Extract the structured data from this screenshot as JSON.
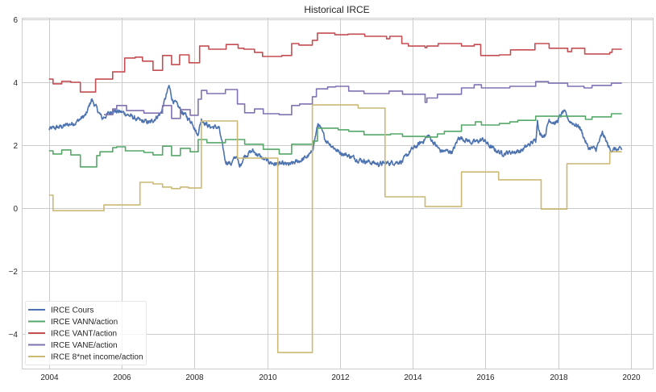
{
  "chart_data": {
    "type": "line",
    "title": "Historical IRCE",
    "xlabel": "",
    "ylabel": "",
    "xlim": [
      2003.25,
      2020.6
    ],
    "ylim": [
      -5.1,
      6.05
    ],
    "grid": true,
    "legend_position": "bottom-left",
    "x_ticks": [
      "2004",
      "2006",
      "2008",
      "2010",
      "2012",
      "2014",
      "2016",
      "2018",
      "2020"
    ],
    "y_ticks": [
      "6",
      "4",
      "2",
      "0",
      "−2",
      "−4"
    ],
    "x_tick_values": [
      2004,
      2006,
      2008,
      2010,
      2012,
      2014,
      2016,
      2018,
      2020
    ],
    "y_tick_values": [
      6,
      4,
      2,
      0,
      -2,
      -4
    ],
    "series": [
      {
        "name": "IRCE Cours",
        "color": "#4c72b0",
        "style": "noisy",
        "points": [
          [
            2004.0,
            2.51
          ],
          [
            2004.35,
            2.59
          ],
          [
            2004.73,
            2.72
          ],
          [
            2005.02,
            2.97
          ],
          [
            2005.17,
            3.46
          ],
          [
            2005.46,
            2.85
          ],
          [
            2005.75,
            3.1
          ],
          [
            2006.06,
            3.03
          ],
          [
            2006.5,
            2.77
          ],
          [
            2006.79,
            2.72
          ],
          [
            2007.08,
            3.03
          ],
          [
            2007.3,
            3.87
          ],
          [
            2007.39,
            3.46
          ],
          [
            2007.68,
            3.03
          ],
          [
            2007.96,
            2.69
          ],
          [
            2008.08,
            2.31
          ],
          [
            2008.19,
            2.82
          ],
          [
            2008.41,
            2.59
          ],
          [
            2008.67,
            2.56
          ],
          [
            2008.85,
            1.49
          ],
          [
            2009.01,
            1.41
          ],
          [
            2009.16,
            1.67
          ],
          [
            2009.23,
            1.31
          ],
          [
            2009.38,
            1.67
          ],
          [
            2009.6,
            1.82
          ],
          [
            2009.89,
            1.56
          ],
          [
            2010.18,
            1.41
          ],
          [
            2010.62,
            1.38
          ],
          [
            2011.0,
            1.56
          ],
          [
            2011.22,
            1.74
          ],
          [
            2011.4,
            2.69
          ],
          [
            2011.6,
            2.18
          ],
          [
            2011.95,
            1.8
          ],
          [
            2012.46,
            1.56
          ],
          [
            2013.06,
            1.4
          ],
          [
            2013.72,
            1.49
          ],
          [
            2013.94,
            1.82
          ],
          [
            2014.23,
            2.08
          ],
          [
            2014.43,
            2.3
          ],
          [
            2014.76,
            1.82
          ],
          [
            2015.1,
            1.8
          ],
          [
            2015.27,
            2.26
          ],
          [
            2015.65,
            2.08
          ],
          [
            2015.94,
            2.18
          ],
          [
            2016.16,
            1.92
          ],
          [
            2016.45,
            1.74
          ],
          [
            2016.98,
            1.82
          ],
          [
            2017.27,
            2.08
          ],
          [
            2017.38,
            2.15
          ],
          [
            2017.43,
            2.82
          ],
          [
            2017.5,
            2.33
          ],
          [
            2017.64,
            2.33
          ],
          [
            2017.75,
            2.82
          ],
          [
            2017.93,
            2.69
          ],
          [
            2018.15,
            3.08
          ],
          [
            2018.31,
            2.77
          ],
          [
            2018.6,
            2.56
          ],
          [
            2018.82,
            1.92
          ],
          [
            2019.04,
            1.87
          ],
          [
            2019.22,
            2.38
          ],
          [
            2019.42,
            1.87
          ],
          [
            2019.75,
            1.85
          ]
        ]
      },
      {
        "name": "IRCE VANN/action",
        "color": "#55a868",
        "style": "step",
        "points": [
          [
            2004.0,
            1.82
          ],
          [
            2004.11,
            1.72
          ],
          [
            2004.35,
            1.85
          ],
          [
            2004.6,
            1.69
          ],
          [
            2004.86,
            1.31
          ],
          [
            2005.31,
            1.67
          ],
          [
            2005.4,
            1.79
          ],
          [
            2005.75,
            1.92
          ],
          [
            2005.86,
            1.95
          ],
          [
            2006.1,
            1.82
          ],
          [
            2006.61,
            1.77
          ],
          [
            2006.86,
            1.69
          ],
          [
            2007.12,
            1.97
          ],
          [
            2007.37,
            1.67
          ],
          [
            2007.61,
            1.9
          ],
          [
            2007.88,
            1.79
          ],
          [
            2008.1,
            2.18
          ],
          [
            2008.34,
            2.08
          ],
          [
            2008.85,
            2.18
          ],
          [
            2009.38,
            2.03
          ],
          [
            2009.89,
            1.87
          ],
          [
            2010.33,
            1.72
          ],
          [
            2010.67,
            2.03
          ],
          [
            2011.26,
            2.13
          ],
          [
            2011.38,
            2.54
          ],
          [
            2011.95,
            2.49
          ],
          [
            2012.24,
            2.44
          ],
          [
            2012.66,
            2.33
          ],
          [
            2013.39,
            2.36
          ],
          [
            2013.72,
            2.28
          ],
          [
            2014.34,
            2.26
          ],
          [
            2014.68,
            2.36
          ],
          [
            2014.87,
            2.44
          ],
          [
            2015.34,
            2.64
          ],
          [
            2015.72,
            2.74
          ],
          [
            2015.89,
            2.64
          ],
          [
            2016.38,
            2.69
          ],
          [
            2016.67,
            2.74
          ],
          [
            2016.89,
            2.79
          ],
          [
            2017.38,
            2.92
          ],
          [
            2018.75,
            2.82
          ],
          [
            2018.93,
            2.9
          ],
          [
            2019.46,
            3.0
          ],
          [
            2019.75,
            3.0
          ]
        ]
      },
      {
        "name": "IRCE VANT/action",
        "color": "#c44e52",
        "style": "step",
        "points": [
          [
            2004.0,
            4.1
          ],
          [
            2004.11,
            3.95
          ],
          [
            2004.35,
            4.03
          ],
          [
            2004.6,
            4.0
          ],
          [
            2004.86,
            3.69
          ],
          [
            2005.28,
            4.1
          ],
          [
            2005.75,
            4.33
          ],
          [
            2006.08,
            4.77
          ],
          [
            2006.37,
            4.8
          ],
          [
            2006.57,
            4.67
          ],
          [
            2006.86,
            4.38
          ],
          [
            2007.12,
            4.85
          ],
          [
            2007.37,
            4.56
          ],
          [
            2007.59,
            4.87
          ],
          [
            2007.85,
            4.62
          ],
          [
            2008.14,
            5.15
          ],
          [
            2008.39,
            5.05
          ],
          [
            2008.87,
            5.2
          ],
          [
            2009.2,
            5.08
          ],
          [
            2009.36,
            5.05
          ],
          [
            2009.65,
            4.95
          ],
          [
            2009.87,
            4.82
          ],
          [
            2010.4,
            4.85
          ],
          [
            2010.67,
            5.23
          ],
          [
            2010.87,
            5.18
          ],
          [
            2011.24,
            5.33
          ],
          [
            2011.38,
            5.56
          ],
          [
            2011.86,
            5.51
          ],
          [
            2012.22,
            5.53
          ],
          [
            2012.68,
            5.46
          ],
          [
            2013.28,
            5.38
          ],
          [
            2013.37,
            5.46
          ],
          [
            2013.7,
            5.23
          ],
          [
            2013.88,
            5.15
          ],
          [
            2014.34,
            5.1
          ],
          [
            2014.39,
            5.15
          ],
          [
            2014.7,
            5.23
          ],
          [
            2015.34,
            5.15
          ],
          [
            2015.69,
            5.2
          ],
          [
            2015.87,
            4.85
          ],
          [
            2016.38,
            4.87
          ],
          [
            2016.69,
            5.03
          ],
          [
            2017.36,
            5.23
          ],
          [
            2017.75,
            5.08
          ],
          [
            2018.26,
            4.97
          ],
          [
            2018.37,
            5.08
          ],
          [
            2018.73,
            4.9
          ],
          [
            2019.42,
            4.95
          ],
          [
            2019.48,
            5.05
          ],
          [
            2019.75,
            5.05
          ]
        ]
      },
      {
        "name": "IRCE VANE/action",
        "color": "#8172b2",
        "style": "step",
        "points": [
          [
            2005.51,
            2.97
          ],
          [
            2005.75,
            3.15
          ],
          [
            2005.86,
            3.26
          ],
          [
            2006.13,
            3.1
          ],
          [
            2006.61,
            3.02
          ],
          [
            2007.12,
            3.26
          ],
          [
            2007.37,
            2.85
          ],
          [
            2007.61,
            3.13
          ],
          [
            2007.88,
            2.95
          ],
          [
            2008.1,
            3.46
          ],
          [
            2008.19,
            3.74
          ],
          [
            2008.34,
            3.64
          ],
          [
            2008.85,
            3.77
          ],
          [
            2009.18,
            3.31
          ],
          [
            2009.38,
            3.03
          ],
          [
            2009.65,
            3.15
          ],
          [
            2009.89,
            3.0
          ],
          [
            2010.33,
            2.97
          ],
          [
            2010.67,
            3.26
          ],
          [
            2010.89,
            3.31
          ],
          [
            2011.24,
            3.54
          ],
          [
            2011.35,
            3.79
          ],
          [
            2011.66,
            3.85
          ],
          [
            2011.88,
            3.87
          ],
          [
            2012.24,
            3.72
          ],
          [
            2012.66,
            3.64
          ],
          [
            2013.35,
            3.72
          ],
          [
            2013.72,
            3.62
          ],
          [
            2014.34,
            3.36
          ],
          [
            2014.39,
            3.5
          ],
          [
            2014.68,
            3.62
          ],
          [
            2015.34,
            3.82
          ],
          [
            2015.69,
            3.92
          ],
          [
            2015.89,
            3.82
          ],
          [
            2016.67,
            3.87
          ],
          [
            2017.38,
            4.02
          ],
          [
            2017.73,
            3.97
          ],
          [
            2018.26,
            3.87
          ],
          [
            2018.71,
            3.82
          ],
          [
            2018.93,
            3.9
          ],
          [
            2019.46,
            3.97
          ],
          [
            2019.75,
            3.97
          ]
        ]
      },
      {
        "name": "IRCE 8*net income/action",
        "color": "#ccb974",
        "style": "step",
        "points": [
          [
            2004.0,
            0.41
          ],
          [
            2004.11,
            -0.08
          ],
          [
            2005.51,
            0.1
          ],
          [
            2006.5,
            0.82
          ],
          [
            2006.86,
            0.77
          ],
          [
            2007.12,
            0.67
          ],
          [
            2007.37,
            0.62
          ],
          [
            2007.61,
            0.67
          ],
          [
            2007.83,
            0.64
          ],
          [
            2008.19,
            2.77
          ],
          [
            2009.18,
            1.59
          ],
          [
            2010.29,
            -4.59
          ],
          [
            2011.24,
            3.28
          ],
          [
            2012.5,
            3.18
          ],
          [
            2013.24,
            0.36
          ],
          [
            2014.34,
            0.05
          ],
          [
            2015.34,
            1.15
          ],
          [
            2016.36,
            0.9
          ],
          [
            2017.53,
            -0.03
          ],
          [
            2018.24,
            1.41
          ],
          [
            2019.42,
            1.79
          ],
          [
            2019.75,
            1.79
          ]
        ]
      }
    ]
  }
}
